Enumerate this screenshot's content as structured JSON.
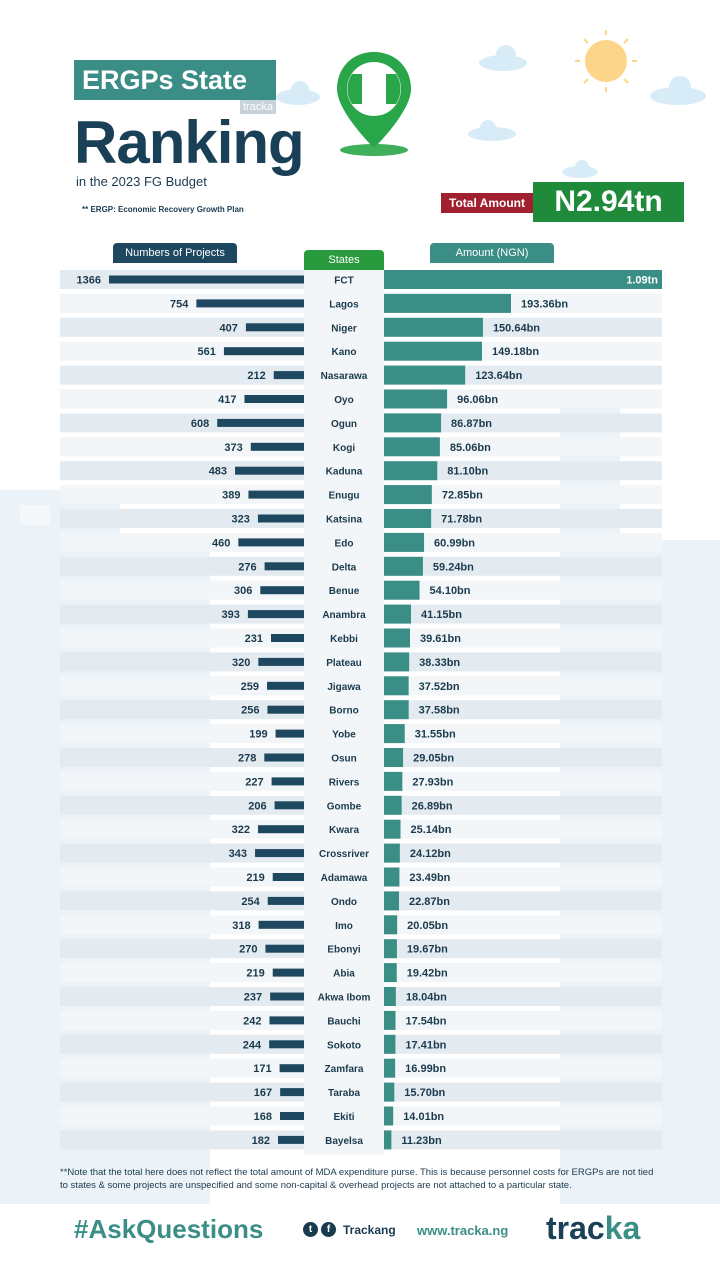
{
  "header": {
    "title_line1": "ERGPs State",
    "title_line2": "Ranking",
    "subtitle": "in the 2023 FG Budget",
    "tag": "tracka",
    "footnote": "** ERGP: Economic Recovery Growth Plan",
    "total_label": "Total Amount",
    "total_value": "N2.94tn"
  },
  "colors": {
    "projects_bar": "#1e4760",
    "amount_bar": "#3a8e86",
    "states_band": "#2a9a3e",
    "total_red": "#a02030",
    "total_green": "#1e8a3a"
  },
  "chart_data": {
    "type": "bar",
    "title": "ERGPs State Ranking in the 2023 FG Budget",
    "column_headers": {
      "projects": "Numbers of Projects",
      "states": "States",
      "amount": "Amount (NGN)"
    },
    "categories": [
      "FCT",
      "Lagos",
      "Niger",
      "Kano",
      "Nasarawa",
      "Oyo",
      "Ogun",
      "Kogi",
      "Kaduna",
      "Enugu",
      "Katsina",
      "Edo",
      "Delta",
      "Benue",
      "Anambra",
      "Kebbi",
      "Plateau",
      "Jigawa",
      "Borno",
      "Yobe",
      "Osun",
      "Rivers",
      "Gombe",
      "Kwara",
      "Crossriver",
      "Adamawa",
      "Ondo",
      "Imo",
      "Ebonyi",
      "Abia",
      "Akwa Ibom",
      "Bauchi",
      "Sokoto",
      "Zamfara",
      "Taraba",
      "Ekiti",
      "Bayelsa"
    ],
    "series": [
      {
        "name": "Numbers of Projects",
        "values": [
          1366,
          754,
          407,
          561,
          212,
          417,
          608,
          373,
          483,
          389,
          323,
          460,
          276,
          306,
          393,
          231,
          320,
          259,
          256,
          199,
          278,
          227,
          206,
          322,
          343,
          219,
          254,
          318,
          270,
          219,
          237,
          242,
          244,
          171,
          167,
          168,
          182
        ]
      },
      {
        "name": "Amount (NGN)",
        "unit": "bn",
        "values": [
          1090,
          193.36,
          150.64,
          149.18,
          123.64,
          96.06,
          86.87,
          85.06,
          81.1,
          72.85,
          71.78,
          60.99,
          59.24,
          54.1,
          41.15,
          39.61,
          38.33,
          37.52,
          37.58,
          31.55,
          29.05,
          27.93,
          26.89,
          25.14,
          24.12,
          23.49,
          22.87,
          20.05,
          19.67,
          19.42,
          18.04,
          17.54,
          17.41,
          16.99,
          15.7,
          14.01,
          11.23
        ],
        "labels": [
          "1.09tn",
          "193.36bn",
          "150.64bn",
          "149.18bn",
          "123.64bn",
          "96.06bn",
          "86.87bn",
          "85.06bn",
          "81.10bn",
          "72.85bn",
          "71.78bn",
          "60.99bn",
          "59.24bn",
          "54.10bn",
          "41.15bn",
          "39.61bn",
          "38.33bn",
          "37.52bn",
          "37.58bn",
          "31.55bn",
          "29.05bn",
          "27.93bn",
          "26.89bn",
          "25.14bn",
          "24.12bn",
          "23.49bn",
          "22.87bn",
          "20.05bn",
          "19.67bn",
          "19.42bn",
          "18.04bn",
          "17.54bn",
          "17.41bn",
          "16.99bn",
          "15.70bn",
          "14.01bn",
          "11.23bn"
        ]
      }
    ]
  },
  "note": "**Note that the total here does not reflect the total amount of MDA expenditure purse. This is because personnel costs for ERGPs are not tied to states & some projects are unspecified and some non-capital & overhead projects are not attached to a particular state.",
  "footer": {
    "hashtag": "#AskQuestions",
    "handle": "Trackang",
    "website": "www.tracka.ng",
    "brand_main": "trac",
    "brand_accent": "ka"
  }
}
